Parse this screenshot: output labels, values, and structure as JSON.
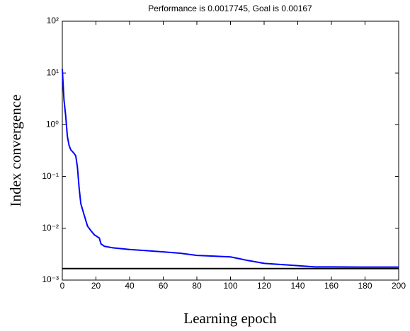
{
  "chart_data": {
    "type": "line",
    "title": "Performance is 0.0017745, Goal is 0.00167",
    "x_label": "Learning epoch",
    "y_label": "Index convergence",
    "log_y": true,
    "x": [
      0,
      1,
      2,
      3,
      4,
      5,
      7,
      8,
      9,
      10,
      11,
      13,
      15,
      17,
      19,
      22,
      23,
      25,
      30,
      40,
      50,
      60,
      70,
      80,
      90,
      100,
      105,
      110,
      120,
      130,
      140,
      150,
      160,
      180,
      200
    ],
    "series": [
      {
        "color": "#0000ff",
        "values": [
          12,
          3,
          1.5,
          0.6,
          0.4,
          0.33,
          0.28,
          0.25,
          0.15,
          0.06,
          0.03,
          0.018,
          0.011,
          0.009,
          0.0075,
          0.0065,
          0.005,
          0.0045,
          0.0042,
          0.0039,
          0.0037,
          0.0035,
          0.0033,
          0.003,
          0.0029,
          0.0028,
          0.0026,
          0.0024,
          0.0021,
          0.002,
          0.0019,
          0.0018,
          0.0018,
          0.00178,
          0.00178
        ]
      }
    ],
    "goal_line": {
      "color": "#000000",
      "value": 0.00167
    },
    "xlim": [
      0,
      200
    ],
    "xticks": [
      0,
      20,
      40,
      60,
      80,
      100,
      120,
      140,
      160,
      180,
      200
    ],
    "ylim": [
      0.001,
      100
    ],
    "yticks": [
      {
        "value": 0.001,
        "label": "10⁻³"
      },
      {
        "value": 0.01,
        "label": "10⁻²"
      },
      {
        "value": 0.1,
        "label": "10⁻¹"
      },
      {
        "value": 1,
        "label": "10⁰"
      },
      {
        "value": 10,
        "label": "10¹"
      },
      {
        "value": 100,
        "label": "10²"
      }
    ]
  }
}
